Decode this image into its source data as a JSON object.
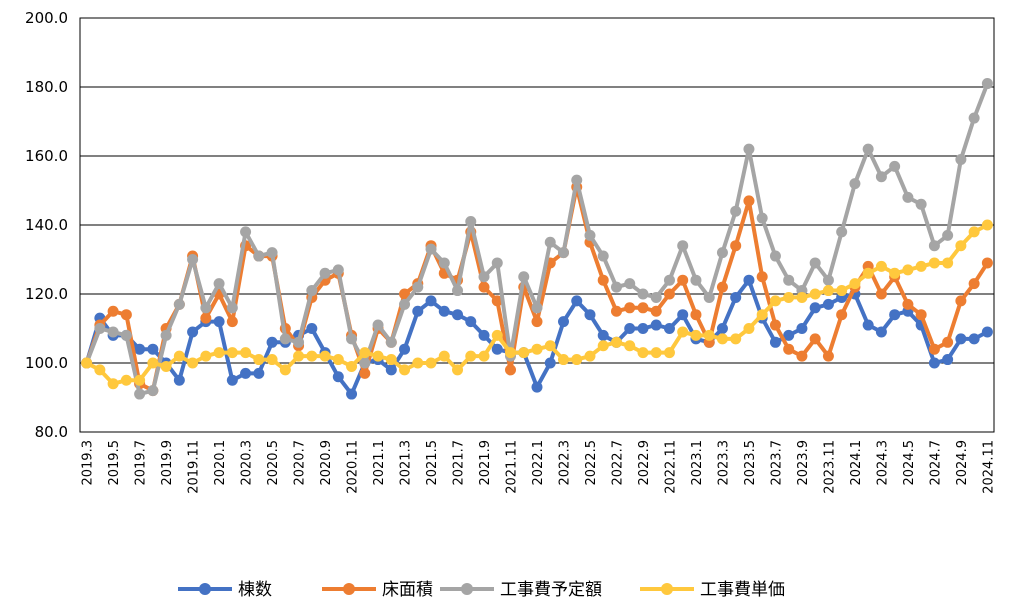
{
  "chart_data": {
    "type": "line",
    "title": "",
    "xlabel": "",
    "ylabel": "",
    "ylim": [
      80,
      200
    ],
    "yticks": [
      "80.0",
      "100.0",
      "120.0",
      "140.0",
      "160.0",
      "180.0",
      "200.0"
    ],
    "grid": "horizontal",
    "legend_position": "bottom",
    "x": [
      "2019.3",
      "2019.4",
      "2019.5",
      "2019.6",
      "2019.7",
      "2019.8",
      "2019.9",
      "2019.10",
      "2019.11",
      "2019.12",
      "2020.1",
      "2020.2",
      "2020.3",
      "2020.4",
      "2020.5",
      "2020.6",
      "2020.7",
      "2020.8",
      "2020.9",
      "2020.10",
      "2020.11",
      "2020.12",
      "2021.1",
      "2021.2",
      "2021.3",
      "2021.4",
      "2021.5",
      "2021.6",
      "2021.7",
      "2021.8",
      "2021.9",
      "2021.10",
      "2021.11",
      "2021.12",
      "2022.1",
      "2022.2",
      "2022.3",
      "2022.4",
      "2022.5",
      "2022.6",
      "2022.7",
      "2022.8",
      "2022.9",
      "2022.10",
      "2022.11",
      "2022.12",
      "2023.1",
      "2023.2",
      "2023.3",
      "2023.4",
      "2023.5",
      "2023.6",
      "2023.7",
      "2023.8",
      "2023.9",
      "2023.10",
      "2023.11",
      "2023.12",
      "2024.1",
      "2024.2",
      "2024.3",
      "2024.4",
      "2024.5",
      "2024.6",
      "2024.7",
      "2024.8",
      "2024.9",
      "2024.10",
      "2024.11"
    ],
    "xtick_labels": [
      "2019.3",
      "2019.5",
      "2019.7",
      "2019.9",
      "2019.11",
      "2020.1",
      "2020.3",
      "2020.5",
      "2020.7",
      "2020.9",
      "2020.11",
      "2021.1",
      "2021.3",
      "2021.5",
      "2021.7",
      "2021.9",
      "2021.11",
      "2022.1",
      "2022.3",
      "2022.5",
      "2022.7",
      "2022.9",
      "2022.11",
      "2023.1",
      "2023.3",
      "2023.5",
      "2023.7",
      "2023.9",
      "2023.11",
      "2024.1",
      "2024.3",
      "2024.5",
      "2024.7",
      "2024.9",
      "2024.11"
    ],
    "series": [
      {
        "name": "棟数",
        "color": "#4472C4",
        "values": [
          100,
          113,
          108,
          108,
          104,
          104,
          100,
          95,
          109,
          112,
          112,
          95,
          97,
          97,
          106,
          106,
          108,
          110,
          103,
          96,
          91,
          100,
          101,
          98,
          104,
          115,
          118,
          115,
          114,
          112,
          108,
          104,
          103,
          103,
          93,
          100,
          112,
          118,
          114,
          108,
          106,
          110,
          110,
          111,
          110,
          114,
          107,
          106,
          110,
          119,
          124,
          113,
          106,
          108,
          110,
          116,
          117,
          119,
          120,
          111,
          109,
          114,
          115,
          111,
          100,
          101,
          107,
          107,
          109
        ]
      },
      {
        "name": "床面積",
        "color": "#ED7D31",
        "values": [
          100,
          111,
          115,
          114,
          94,
          92,
          110,
          117,
          131,
          113,
          120,
          112,
          134,
          131,
          131,
          110,
          105,
          119,
          124,
          126,
          108,
          97,
          110,
          106,
          120,
          123,
          134,
          126,
          124,
          138,
          122,
          118,
          98,
          122,
          112,
          129,
          132,
          151,
          135,
          124,
          115,
          116,
          116,
          115,
          120,
          124,
          114,
          106,
          122,
          134,
          147,
          125,
          111,
          104,
          102,
          107,
          102,
          114,
          122,
          128,
          120,
          125,
          117,
          114,
          104,
          106,
          118,
          123,
          129
        ]
      },
      {
        "name": "工事費予定額",
        "color": "#A5A5A5",
        "values": [
          100,
          110,
          109,
          108,
          91,
          92,
          108,
          117,
          130,
          116,
          123,
          116,
          138,
          131,
          132,
          107,
          106,
          121,
          126,
          127,
          107,
          100,
          111,
          106,
          117,
          122,
          133,
          129,
          121,
          141,
          125,
          129,
          102,
          125,
          116,
          135,
          132,
          153,
          137,
          131,
          122,
          123,
          120,
          119,
          124,
          134,
          124,
          119,
          132,
          144,
          162,
          142,
          131,
          124,
          121,
          129,
          124,
          138,
          152,
          162,
          154,
          157,
          148,
          146,
          134,
          137,
          159,
          171,
          181
        ]
      },
      {
        "name": "工事費単価",
        "color": "#FFC83D",
        "values": [
          100,
          98,
          94,
          95,
          95,
          100,
          99,
          102,
          100,
          102,
          103,
          103,
          103,
          101,
          101,
          98,
          102,
          102,
          102,
          101,
          99,
          103,
          102,
          101,
          98,
          100,
          100,
          102,
          98,
          102,
          102,
          108,
          103,
          103,
          104,
          105,
          101,
          101,
          102,
          105,
          106,
          105,
          103,
          103,
          103,
          109,
          108,
          108,
          107,
          107,
          110,
          114,
          118,
          119,
          119,
          120,
          121,
          121,
          123,
          126,
          128,
          126,
          127,
          128,
          129,
          129,
          134,
          138,
          140
        ]
      }
    ]
  }
}
